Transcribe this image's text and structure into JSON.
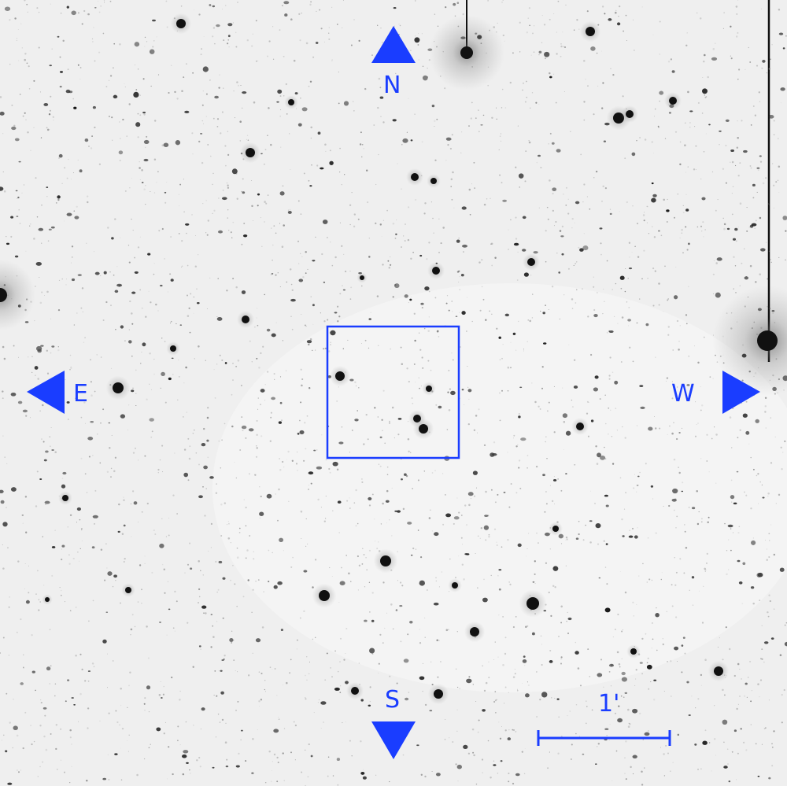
{
  "image": {
    "description_type": "astronomical-field",
    "background_color": "#f2f2f2",
    "annotation_color": "#1a3dff"
  },
  "compass": {
    "north": "N",
    "south": "S",
    "east": "E",
    "west": "W"
  },
  "scale_bar": {
    "label": "1'"
  }
}
